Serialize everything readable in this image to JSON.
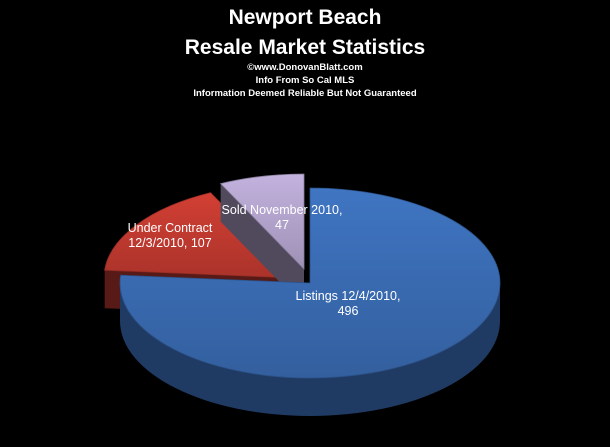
{
  "header": {
    "title_line_1": "Newport Beach",
    "title_line_2": "Resale Market Statistics",
    "copyright": "©www.DonovanBlatt.com",
    "source": "Info From So Cal MLS",
    "disclaimer": "Information Deemed Reliable But Not Guaranteed"
  },
  "chart_data": {
    "type": "pie",
    "title": "Newport Beach Resale Market Statistics",
    "three_d": true,
    "legend": "none",
    "slices": [
      {
        "name": "Listings 12/4/2010,",
        "value": 496,
        "color": "#3A6CB4",
        "label_lines": [
          "Listings 12/4/2010,",
          "496"
        ]
      },
      {
        "name": "Under Contract 12/3/2010,",
        "value": 107,
        "color": "#C23A30",
        "label_lines": [
          "Under Contract",
          "12/3/2010,  107"
        ]
      },
      {
        "name": "Sold November 2010,",
        "value": 47,
        "color": "#B4A5CE",
        "label_lines": [
          "Sold November  2010,",
          "47"
        ]
      }
    ]
  }
}
